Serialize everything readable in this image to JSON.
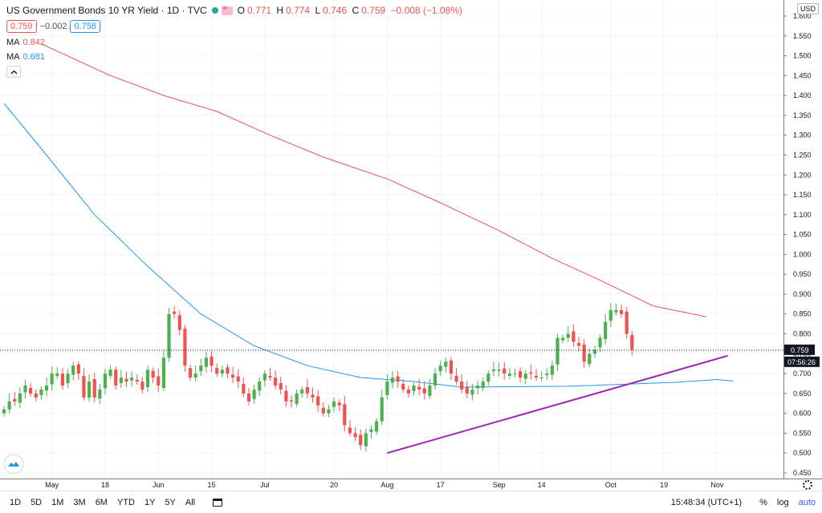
{
  "legend": {
    "title": "US Government Bonds 10 YR Yield · 1D · TVC",
    "ohlc": [
      {
        "k": "O",
        "v": "0.771"
      },
      {
        "k": "H",
        "v": "0.774"
      },
      {
        "k": "L",
        "v": "0.746"
      },
      {
        "k": "C",
        "v": "0.759"
      },
      {
        "k": "",
        "v": "−0.008 (−1.08%)"
      }
    ],
    "bid": "0.759",
    "spread": "−0.002",
    "ask": "0.758",
    "ma1": {
      "label": "MA",
      "value": "0.842",
      "color": "#ef5350"
    },
    "ma2": {
      "label": "MA",
      "value": "0.681",
      "color": "#2196f3"
    },
    "collapse_icon": "chevron-up-icon"
  },
  "currency": "USD",
  "colors": {
    "up": "#4caf50",
    "down": "#ef5350",
    "ma1": "#ef5350",
    "ma2": "#2196f3",
    "trend": "#9c27b0",
    "grid": "#f0f3fa"
  },
  "toolbar": {
    "timeframes": [
      "1D",
      "5D",
      "1M",
      "3M",
      "6M",
      "YTD",
      "1Y",
      "5Y",
      "All"
    ],
    "clock": "15:48:34 (UTC+1)",
    "percent": "%",
    "log": "log",
    "auto": "auto"
  },
  "chart_data": {
    "type": "candlestick",
    "ylim": [
      0.45,
      1.6
    ],
    "y_ticks": [
      "1.600",
      "1.550",
      "1.500",
      "1.450",
      "1.400",
      "1.350",
      "1.300",
      "1.250",
      "1.200",
      "1.150",
      "1.100",
      "1.050",
      "1.000",
      "0.950",
      "0.900",
      "0.850",
      "0.800",
      "0.750",
      "0.700",
      "0.650",
      "0.600",
      "0.550",
      "0.500",
      "0.450"
    ],
    "x_ticks": [
      {
        "label": "May",
        "i": 9
      },
      {
        "label": "18",
        "i": 19
      },
      {
        "label": "Jun",
        "i": 29
      },
      {
        "label": "15",
        "i": 39
      },
      {
        "label": "Jul",
        "i": 49
      },
      {
        "label": "20",
        "i": 62
      },
      {
        "label": "Aug",
        "i": 72
      },
      {
        "label": "17",
        "i": 82
      },
      {
        "label": "Sep",
        "i": 93
      },
      {
        "label": "14",
        "i": 101
      },
      {
        "label": "Oct",
        "i": 114
      },
      {
        "label": "19",
        "i": 124
      },
      {
        "label": "Nov",
        "i": 134
      }
    ],
    "last_price": "0.759",
    "countdown": "07:56:26",
    "closes": [
      0.61,
      0.63,
      0.63,
      0.65,
      0.67,
      0.65,
      0.64,
      0.66,
      0.67,
      0.7,
      0.7,
      0.67,
      0.7,
      0.72,
      0.7,
      0.64,
      0.68,
      0.64,
      0.66,
      0.7,
      0.71,
      0.67,
      0.69,
      0.68,
      0.69,
      0.68,
      0.66,
      0.71,
      0.69,
      0.67,
      0.74,
      0.85,
      0.85,
      0.81,
      0.72,
      0.69,
      0.7,
      0.72,
      0.74,
      0.72,
      0.7,
      0.71,
      0.7,
      0.69,
      0.68,
      0.65,
      0.63,
      0.66,
      0.68,
      0.7,
      0.69,
      0.67,
      0.66,
      0.63,
      0.63,
      0.65,
      0.66,
      0.65,
      0.64,
      0.62,
      0.6,
      0.61,
      0.63,
      0.62,
      0.57,
      0.55,
      0.54,
      0.52,
      0.55,
      0.56,
      0.58,
      0.64,
      0.68,
      0.69,
      0.68,
      0.66,
      0.65,
      0.67,
      0.66,
      0.65,
      0.67,
      0.7,
      0.72,
      0.73,
      0.7,
      0.68,
      0.66,
      0.65,
      0.66,
      0.67,
      0.68,
      0.7,
      0.71,
      0.71,
      0.7,
      0.7,
      0.7,
      0.69,
      0.7,
      0.7,
      0.69,
      0.69,
      0.7,
      0.72,
      0.79,
      0.79,
      0.8,
      0.78,
      0.77,
      0.73,
      0.75,
      0.76,
      0.79,
      0.83,
      0.86,
      0.86,
      0.85,
      0.8,
      0.76
    ],
    "trendline": {
      "from": {
        "i": 72,
        "y": 0.5
      },
      "to": {
        "i": 136,
        "y": 0.745
      }
    },
    "ma1_points": [
      [
        7,
        1.53
      ],
      [
        20,
        1.45
      ],
      [
        30,
        1.4
      ],
      [
        40,
        1.36
      ],
      [
        50,
        1.3
      ],
      [
        60,
        1.245
      ],
      [
        72,
        1.19
      ],
      [
        82,
        1.13
      ],
      [
        93,
        1.06
      ],
      [
        103,
        0.99
      ],
      [
        112,
        0.935
      ],
      [
        122,
        0.87
      ],
      [
        132,
        0.843
      ]
    ],
    "ma2_points": [
      [
        0,
        1.38
      ],
      [
        8,
        1.25
      ],
      [
        17,
        1.1
      ],
      [
        27,
        0.97
      ],
      [
        37,
        0.85
      ],
      [
        47,
        0.77
      ],
      [
        57,
        0.72
      ],
      [
        67,
        0.69
      ],
      [
        77,
        0.68
      ],
      [
        86,
        0.666
      ],
      [
        96,
        0.667
      ],
      [
        106,
        0.668
      ],
      [
        116,
        0.673
      ],
      [
        126,
        0.678
      ],
      [
        134,
        0.685
      ],
      [
        137,
        0.681
      ]
    ]
  }
}
